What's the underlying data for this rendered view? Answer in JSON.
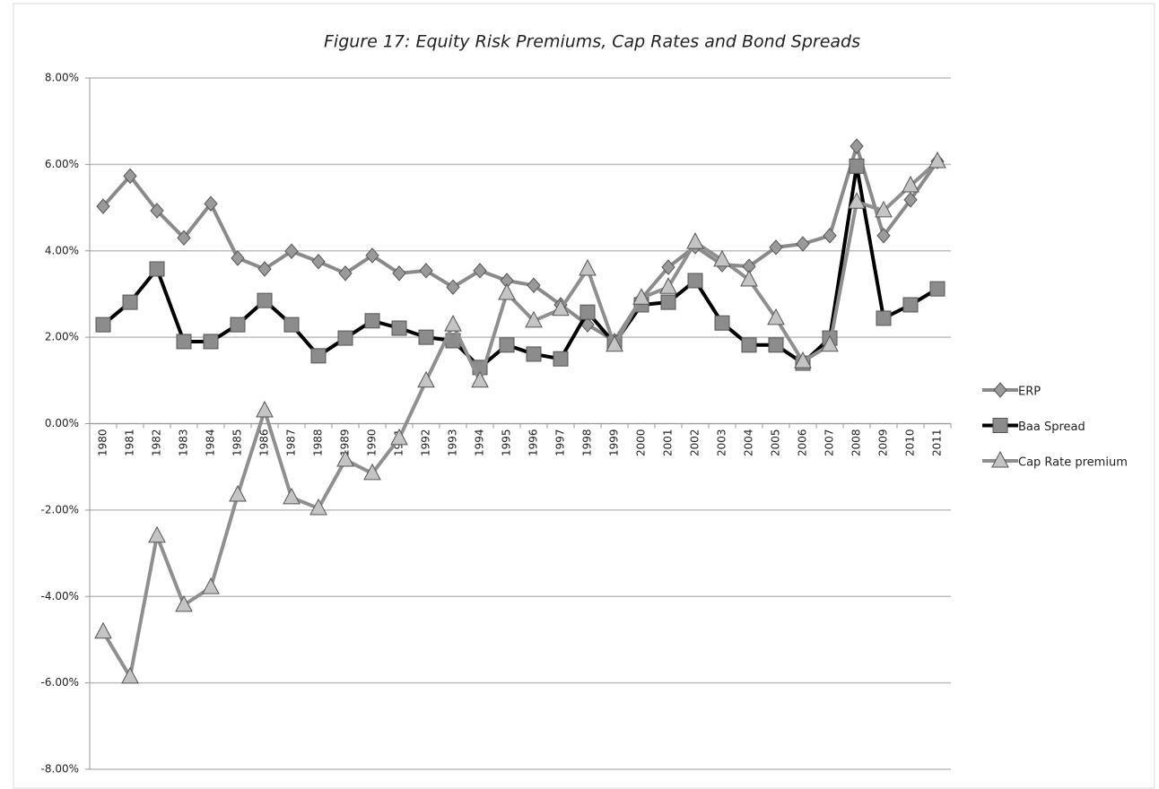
{
  "chart_data": {
    "type": "line",
    "title": "Figure 17: Equity Risk Premiums, Cap Rates and Bond Spreads",
    "categories": [
      "1980",
      "1981",
      "1982",
      "1983",
      "1984",
      "1985",
      "1986",
      "1987",
      "1988",
      "1989",
      "1990",
      "1991",
      "1992",
      "1993",
      "1994",
      "1995",
      "1996",
      "1997",
      "1998",
      "1999",
      "2000",
      "2001",
      "2002",
      "2003",
      "2004",
      "2005",
      "2006",
      "2007",
      "2008",
      "2009",
      "2010",
      "2011"
    ],
    "series": [
      {
        "name": "ERP",
        "color": "#8a8a8a",
        "marker": "diamond",
        "marker_color": "#9a9a9a",
        "values": [
          5.03,
          5.73,
          4.93,
          4.3,
          5.09,
          3.83,
          3.58,
          3.99,
          3.75,
          3.48,
          3.89,
          3.48,
          3.54,
          3.16,
          3.54,
          3.31,
          3.2,
          2.75,
          2.29,
          1.92,
          2.89,
          3.62,
          4.1,
          3.68,
          3.64,
          4.08,
          4.16,
          4.35,
          6.42,
          4.35,
          5.18,
          6.07
        ]
      },
      {
        "name": "Baa Spread",
        "color": "#000000",
        "marker": "square",
        "marker_color": "#8c8c8c",
        "values": [
          2.29,
          2.81,
          3.58,
          1.9,
          1.9,
          2.29,
          2.85,
          2.29,
          1.57,
          1.98,
          2.38,
          2.21,
          2.0,
          1.92,
          1.3,
          1.82,
          1.61,
          1.5,
          2.58,
          1.86,
          2.75,
          2.81,
          3.31,
          2.33,
          1.82,
          1.82,
          1.4,
          1.98,
          5.96,
          2.44,
          2.75,
          3.12
        ]
      },
      {
        "name": "Cap Rate premium",
        "color": "#8f8f8f",
        "marker": "triangle",
        "marker_color": "#c4c4c4",
        "values": [
          -4.82,
          -5.86,
          -2.6,
          -4.2,
          -3.79,
          -1.65,
          0.3,
          -1.71,
          -1.96,
          -0.84,
          -1.15,
          -0.34,
          0.99,
          2.29,
          0.99,
          3.02,
          2.38,
          2.65,
          3.58,
          1.82,
          2.91,
          3.16,
          4.2,
          3.79,
          3.33,
          2.44,
          1.44,
          1.82,
          5.13,
          4.93,
          5.51,
          6.07
        ]
      }
    ],
    "ylim": [
      -8,
      8
    ],
    "yticks": [
      {
        "value": -8,
        "label": "-8.00%"
      },
      {
        "value": -6,
        "label": "-6.00%"
      },
      {
        "value": -4,
        "label": "-4.00%"
      },
      {
        "value": -2,
        "label": "-2.00%"
      },
      {
        "value": 0,
        "label": "0.00%"
      },
      {
        "value": 2,
        "label": "2.00%"
      },
      {
        "value": 4,
        "label": "4.00%"
      },
      {
        "value": 6,
        "label": "6.00%"
      },
      {
        "value": 8,
        "label": "8.00%"
      }
    ],
    "grid": true,
    "legend": "right"
  }
}
